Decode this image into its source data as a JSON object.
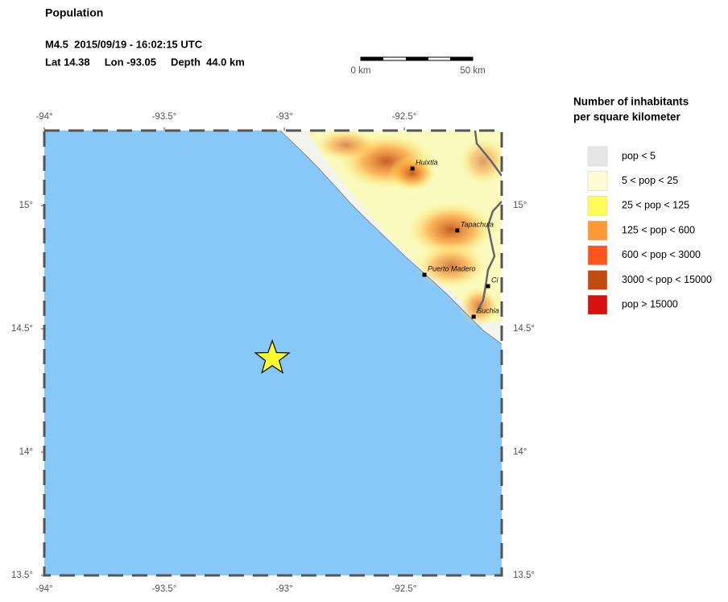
{
  "header": {
    "title": "Population",
    "event": "M4.5  2015/09/19 - 16:02:15 UTC",
    "location": "Lat 14.38     Lon -93.05     Depth  44.0 km"
  },
  "scale": {
    "labels": [
      "0 km",
      "50 km"
    ]
  },
  "map": {
    "lonlim": [
      -94,
      -92.094
    ],
    "latlim": [
      13.5,
      15.304
    ],
    "lonticks": [
      {
        "value": -94,
        "label": "-94°"
      },
      {
        "value": -93.5,
        "label": "-93.5°"
      },
      {
        "value": -93,
        "label": "-93°"
      },
      {
        "value": -92.5,
        "label": "-92.5°"
      }
    ],
    "latticks": [
      {
        "value": 15,
        "label": "15°"
      },
      {
        "value": 14.5,
        "label": "14.5°"
      },
      {
        "value": 14,
        "label": "14°"
      },
      {
        "value": 13.5,
        "label": "13.5°"
      }
    ],
    "epicenter": {
      "lat": 14.38,
      "lon": -93.05,
      "color": "#ffff33"
    },
    "cities": [
      {
        "name": "Huixtla",
        "lon": -92.466,
        "lat": 15.15
      },
      {
        "name": "Tapachula",
        "lon": -92.279,
        "lat": 14.899
      },
      {
        "name": "Puerto Madero",
        "lon": -92.416,
        "lat": 14.719
      },
      {
        "name": "Ci",
        "lon": -92.151,
        "lat": 14.673
      },
      {
        "name": "Suchia",
        "lon": -92.211,
        "lat": 14.549
      }
    ]
  },
  "legend": {
    "title": [
      "Number of inhabitants",
      "per square kilometer"
    ],
    "items": [
      {
        "label": "pop < 5",
        "color": "#e6e6e6"
      },
      {
        "label": "5 < pop < 25",
        "color": "#fefdd2"
      },
      {
        "label": "25 < pop < 125",
        "color": "#fefb5a"
      },
      {
        "label": "125 < pop < 600",
        "color": "#fd9a35"
      },
      {
        "label": "600 < pop < 3000",
        "color": "#fd5520"
      },
      {
        "label": "3000 < pop < 15000",
        "color": "#c04a12"
      },
      {
        "label": "pop > 15000",
        "color": "#d91010"
      }
    ]
  }
}
